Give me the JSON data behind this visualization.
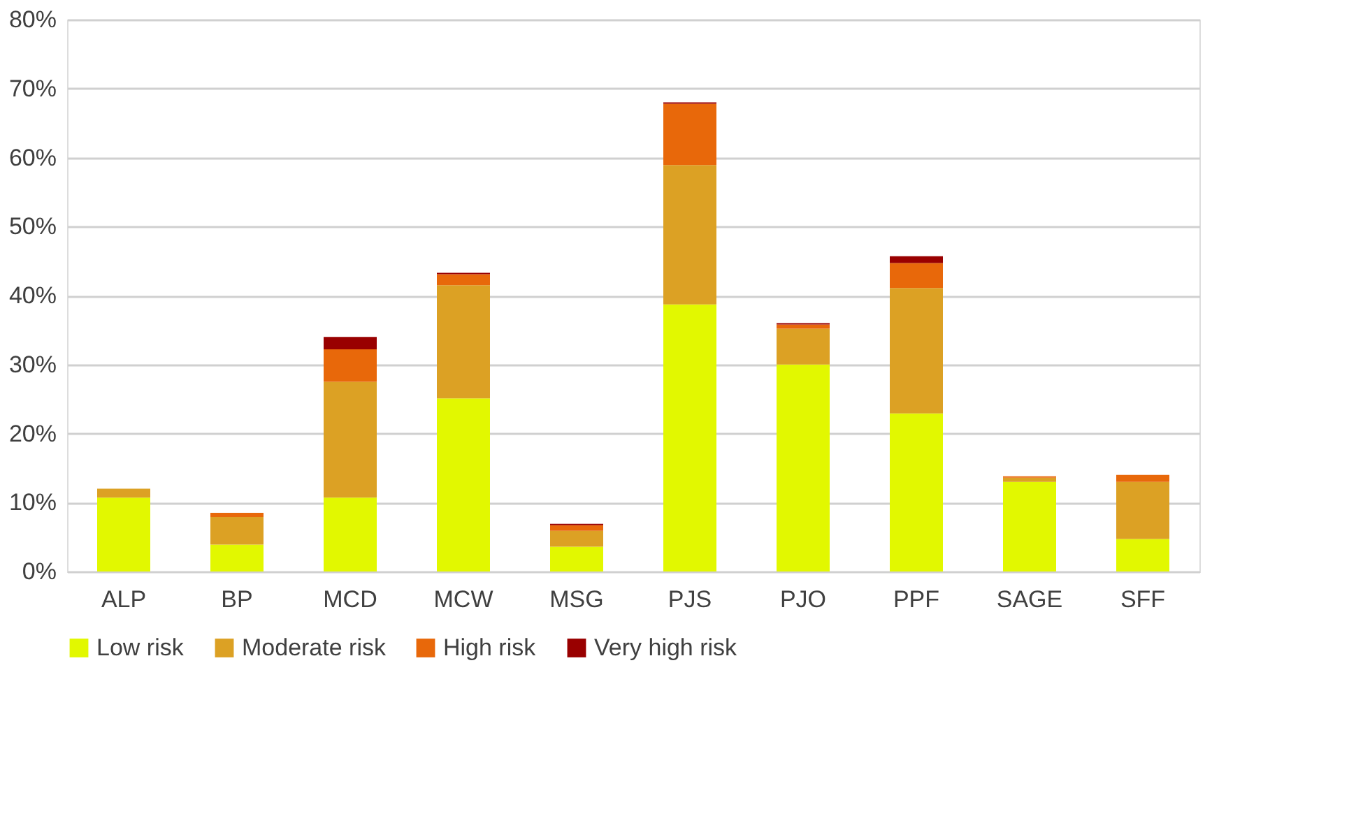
{
  "chart_data": {
    "type": "bar",
    "stacked": true,
    "categories": [
      "ALP",
      "BP",
      "MCD",
      "MCW",
      "MSG",
      "PJS",
      "PJO",
      "PPF",
      "SAGE",
      "SFF"
    ],
    "series": [
      {
        "name": "Low risk",
        "color": "#e2f800",
        "values": [
          10.7,
          3.9,
          10.7,
          25.1,
          3.6,
          38.7,
          30.0,
          22.9,
          13.0,
          4.7
        ]
      },
      {
        "name": "Moderate risk",
        "color": "#dca124",
        "values": [
          1.3,
          4.0,
          16.8,
          16.4,
          2.3,
          20.2,
          5.2,
          18.2,
          0.6,
          8.3
        ]
      },
      {
        "name": "High risk",
        "color": "#e8680a",
        "values": [
          0,
          0.6,
          4.7,
          1.6,
          0.8,
          8.9,
          0.6,
          3.6,
          0.2,
          1.0
        ]
      },
      {
        "name": "Very high risk",
        "color": "#990000",
        "values": [
          0,
          0,
          1.8,
          0.2,
          0.2,
          0.2,
          0.2,
          1.0,
          0,
          0
        ]
      }
    ],
    "ylim": [
      0,
      80
    ],
    "yticks": [
      {
        "value": 0,
        "label": "0%"
      },
      {
        "value": 10,
        "label": "10%"
      },
      {
        "value": 20,
        "label": "20%"
      },
      {
        "value": 30,
        "label": "30%"
      },
      {
        "value": 40,
        "label": "40%"
      },
      {
        "value": 50,
        "label": "50%"
      },
      {
        "value": 60,
        "label": "60%"
      },
      {
        "value": 70,
        "label": "70%"
      },
      {
        "value": 80,
        "label": "80%"
      }
    ],
    "grid": "y",
    "legend": "bottom"
  }
}
